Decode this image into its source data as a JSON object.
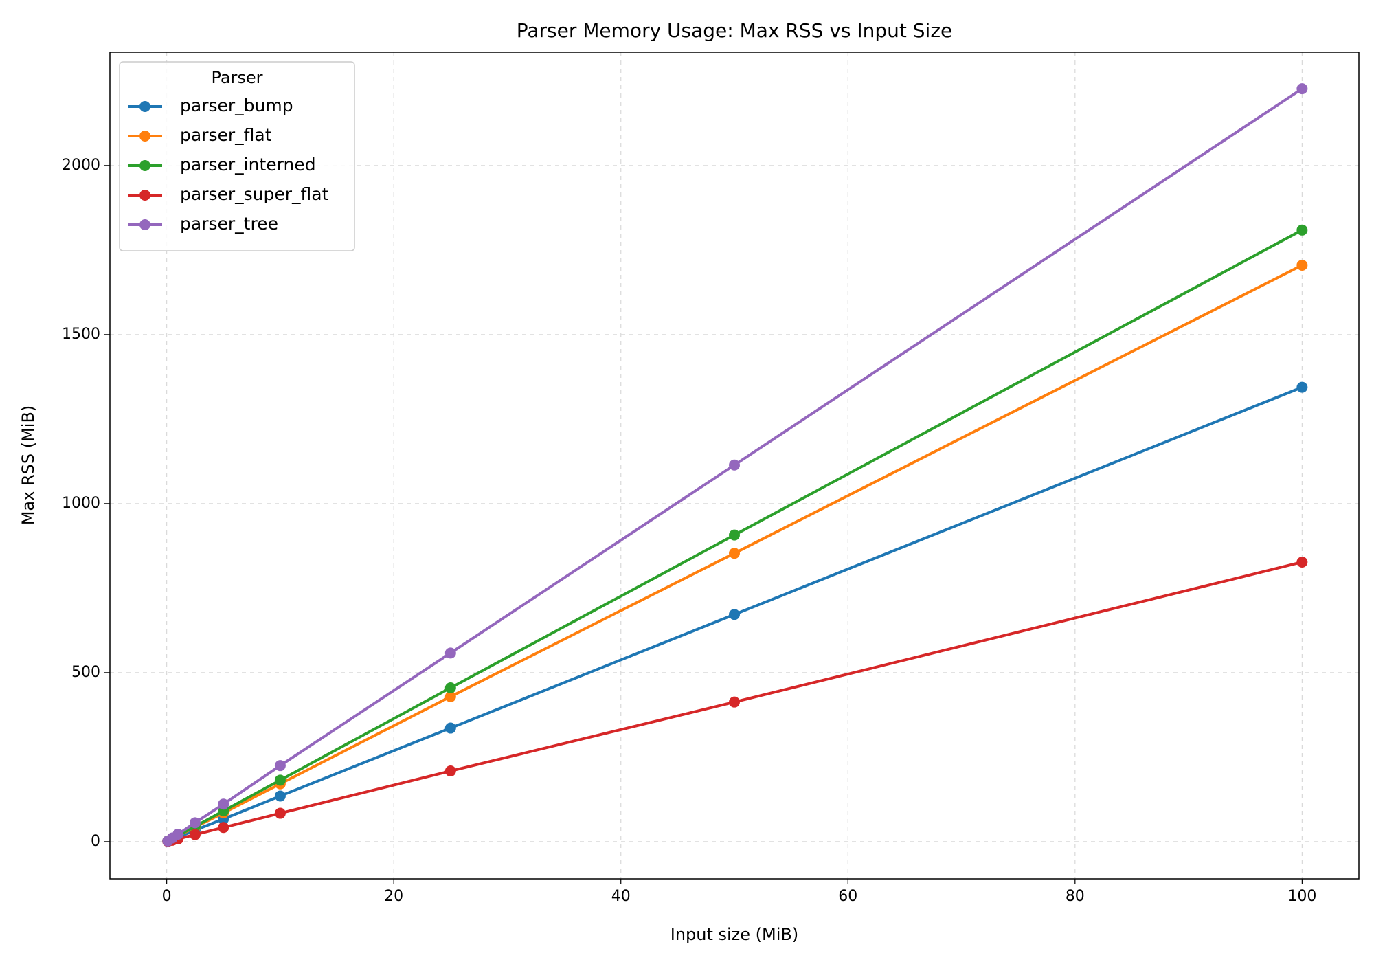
{
  "chart_data": {
    "type": "line",
    "title": "Parser Memory Usage: Max RSS vs Input Size",
    "xlabel": "Input size (MiB)",
    "ylabel": "Max RSS (MiB)",
    "x": [
      0.1,
      0.5,
      1,
      2.5,
      5,
      10,
      25,
      50,
      100
    ],
    "series": [
      {
        "name": "parser_bump",
        "color": "#1f77b4",
        "values": [
          1,
          7,
          13,
          34,
          67,
          135,
          336,
          672,
          1344
        ]
      },
      {
        "name": "parser_flat",
        "color": "#ff7f0e",
        "values": [
          2,
          9,
          17,
          43,
          85,
          171,
          429,
          853,
          1705
        ]
      },
      {
        "name": "parser_interned",
        "color": "#2ca02c",
        "values": [
          2,
          9,
          18,
          45,
          91,
          182,
          455,
          907,
          1809
        ]
      },
      {
        "name": "parser_super_flat",
        "color": "#d62728",
        "values": [
          1,
          4,
          8,
          21,
          42,
          84,
          209,
          413,
          827
        ]
      },
      {
        "name": "parser_tree",
        "color": "#9467bd",
        "values": [
          2,
          11,
          22,
          56,
          111,
          225,
          558,
          1114,
          2227
        ]
      }
    ],
    "legend_title": "Parser",
    "legend_position": "upper left",
    "xlim": [
      -5,
      105
    ],
    "ylim": [
      -110,
      2335
    ],
    "xticks": [
      0,
      20,
      40,
      60,
      80,
      100
    ],
    "yticks": [
      0,
      500,
      1000,
      1500,
      2000
    ],
    "grid": true
  }
}
